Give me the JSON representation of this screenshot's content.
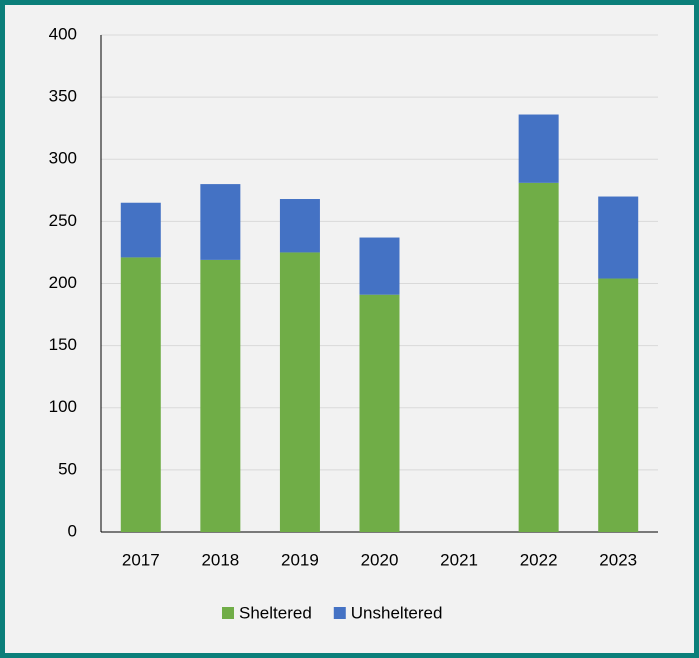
{
  "chart_data": {
    "type": "stacked_bar",
    "categories": [
      "2017",
      "2018",
      "2019",
      "2020",
      "2021",
      "2022",
      "2023"
    ],
    "series": [
      {
        "name": "Sheltered",
        "color": "#70ad47",
        "values": [
          221,
          219,
          225,
          191,
          null,
          281,
          204
        ]
      },
      {
        "name": "Unsheltered",
        "color": "#4472c4",
        "values": [
          44,
          61,
          43,
          46,
          null,
          55,
          66
        ]
      }
    ],
    "ylim": [
      0,
      400
    ],
    "yticks": [
      0,
      50,
      100,
      150,
      200,
      250,
      300,
      350,
      400
    ],
    "grid": true,
    "legend": "bottom"
  }
}
